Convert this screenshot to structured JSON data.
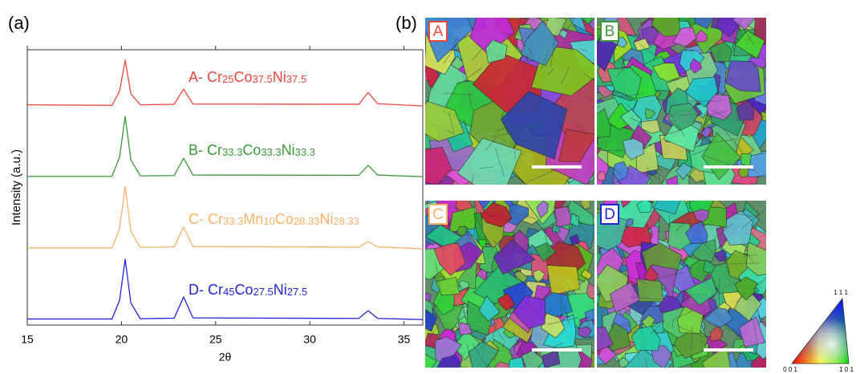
{
  "panel_labels": {
    "a": "(a)",
    "b": "(b)"
  },
  "chart_data": {
    "type": "line",
    "x_label": "2θ",
    "y_label": "Intensity (a.u.)",
    "xlim": [
      15,
      36
    ],
    "ylim": [
      0,
      100
    ],
    "xticks": [
      15,
      20,
      25,
      30,
      35
    ],
    "x": [
      15,
      19.5,
      19.9,
      20.2,
      20.5,
      21,
      22.8,
      23.3,
      23.8,
      32.6,
      33.1,
      33.6,
      36
    ],
    "series": [
      {
        "name": [
          "A- Cr",
          "25",
          "Co",
          "37.5",
          "Ni",
          "37.5"
        ],
        "color": "#e8473f",
        "values": [
          80,
          79.8,
          85,
          96.2,
          84,
          80,
          80.2,
          85.7,
          80.3,
          80.2,
          84.5,
          80.4,
          79.6
        ]
      },
      {
        "name": [
          "B- Cr",
          "33.3",
          "Co",
          "33.3",
          "Ni",
          "33.3"
        ],
        "color": "#3a9a3a",
        "values": [
          54,
          54,
          61,
          75.8,
          60,
          54.2,
          54.3,
          60.6,
          54.5,
          54.4,
          58.0,
          54.5,
          53.9
        ]
      },
      {
        "name": [
          "C- Cr",
          "33.3",
          "Mn",
          "10",
          "Co",
          "28.33",
          "Ni",
          "28.33"
        ],
        "color": "#f6b26b",
        "values": [
          28,
          28,
          35,
          50.4,
          34,
          28.2,
          28.4,
          35.6,
          28.5,
          28.3,
          30.3,
          28.4,
          27.7
        ]
      },
      {
        "name": [
          "D- Cr",
          "45",
          "Co",
          "27.5",
          "Ni",
          "27.5"
        ],
        "color": "#2424d8",
        "values": [
          2.2,
          2.2,
          9,
          23.9,
          8,
          2.3,
          2.5,
          10.2,
          2.6,
          2.4,
          5.2,
          2.4,
          2.0
        ]
      }
    ]
  },
  "images": [
    {
      "label": "A",
      "color": "#e8473f"
    },
    {
      "label": "B",
      "color": "#3a9a3a"
    },
    {
      "label": "C",
      "color": "#f6b26b"
    },
    {
      "label": "D",
      "color": "#2424d8"
    }
  ],
  "color_key": {
    "top": "1 1 1",
    "left": "0 0 1",
    "right": "1 0 1"
  }
}
